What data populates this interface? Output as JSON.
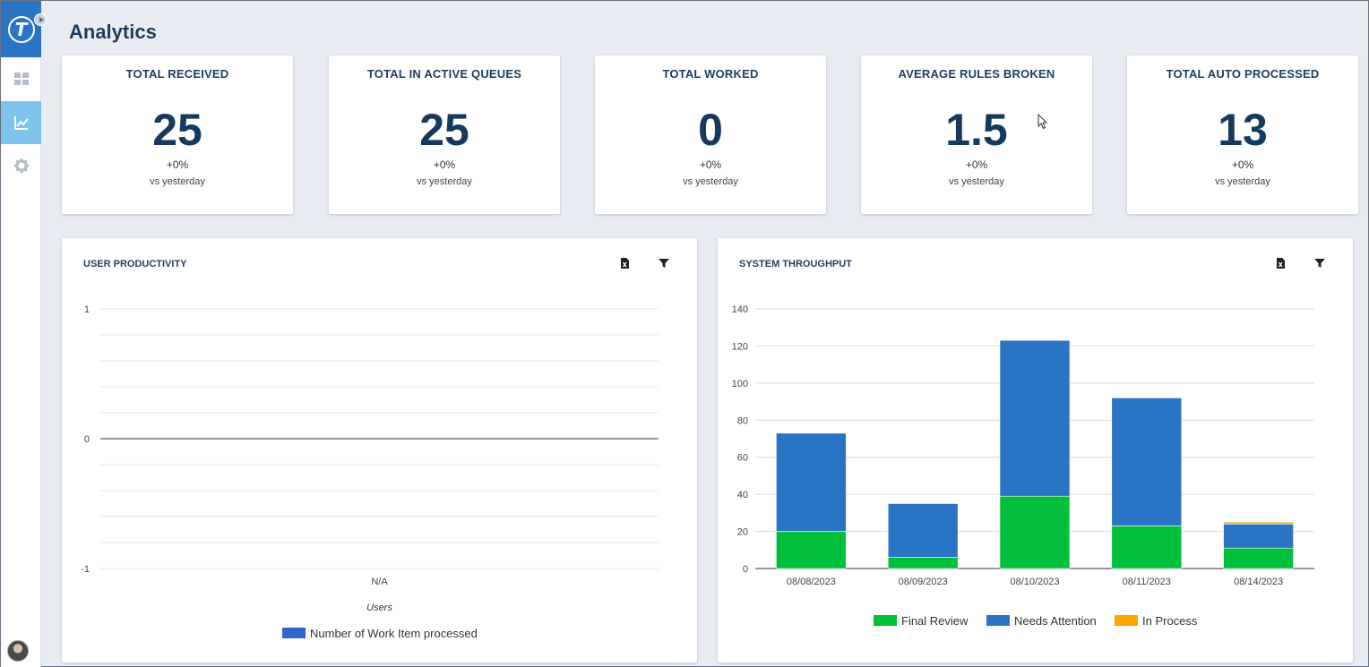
{
  "app": {
    "logo_letter": "T"
  },
  "sidebar": {
    "items": [
      {
        "icon": "dashboard-icon",
        "active": false
      },
      {
        "icon": "analytics-chart-icon",
        "active": true
      },
      {
        "icon": "gear-icon",
        "active": false
      }
    ]
  },
  "page": {
    "title": "Analytics"
  },
  "stats": [
    {
      "title": "TOTAL RECEIVED",
      "value": "25",
      "delta": "+0%",
      "sub": "vs yesterday"
    },
    {
      "title": "TOTAL IN ACTIVE QUEUES",
      "value": "25",
      "delta": "+0%",
      "sub": "vs yesterday"
    },
    {
      "title": "TOTAL WORKED",
      "value": "0",
      "delta": "+0%",
      "sub": "vs yesterday"
    },
    {
      "title": "AVERAGE RULES BROKEN",
      "value": "1.5",
      "delta": "+0%",
      "sub": "vs yesterday"
    },
    {
      "title": "TOTAL AUTO PROCESSED",
      "value": "13",
      "delta": "+0%",
      "sub": "vs yesterday"
    }
  ],
  "user_productivity": {
    "title": "USER PRODUCTIVITY",
    "export_icon": "excel-export-icon",
    "filter_icon": "filter-icon"
  },
  "system_throughput": {
    "title": "SYSTEM THROUGHPUT",
    "export_icon": "excel-export-icon",
    "filter_icon": "filter-icon"
  },
  "colors": {
    "accent": "#2a74c5",
    "final_review": "#00bf3a",
    "needs_attention": "#2a74c5",
    "in_process": "#ffa500",
    "work_items": "#3366cc"
  },
  "chart_data": [
    {
      "type": "bar",
      "title": "USER PRODUCTIVITY",
      "categories": [
        "N/A"
      ],
      "xlabel": "Users",
      "ylabel": "",
      "ylim": [
        -1,
        1
      ],
      "yticks": [
        "1",
        "0",
        "-1"
      ],
      "series": [
        {
          "name": "Number of Work Item processed",
          "values": [
            0
          ]
        }
      ],
      "grid": true,
      "legend": "bottom"
    },
    {
      "type": "bar",
      "stacked": true,
      "title": "SYSTEM THROUGHPUT",
      "categories": [
        "08/08/2023",
        "08/09/2023",
        "08/10/2023",
        "08/11/2023",
        "08/14/2023"
      ],
      "xlabel": "",
      "ylabel": "",
      "ylim": [
        0,
        140
      ],
      "yticks": [
        "0",
        "20",
        "40",
        "60",
        "80",
        "100",
        "120",
        "140"
      ],
      "series": [
        {
          "name": "Final Review",
          "values": [
            20,
            6,
            39,
            23,
            11
          ]
        },
        {
          "name": "Needs Attention",
          "values": [
            53,
            29,
            84,
            69,
            13
          ]
        },
        {
          "name": "In Process",
          "values": [
            0,
            0,
            0,
            0,
            1
          ]
        }
      ],
      "grid": true,
      "legend": "bottom"
    }
  ]
}
